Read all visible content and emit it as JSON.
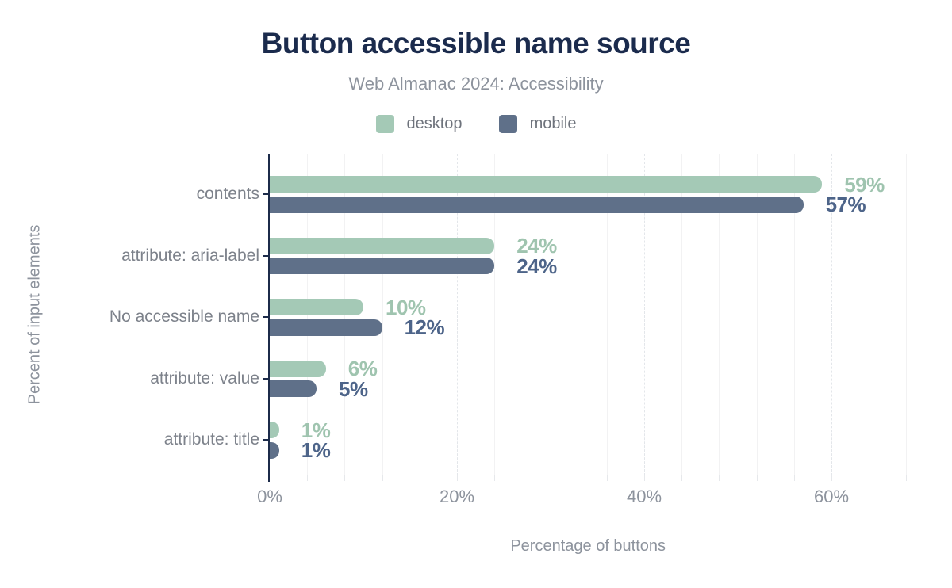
{
  "header": {
    "title": "Button accessible name source",
    "subtitle": "Web Almanac 2024: Accessibility"
  },
  "legend": {
    "items": [
      {
        "label": "desktop",
        "color": "#a4c9b6"
      },
      {
        "label": "mobile",
        "color": "#5f7089"
      }
    ]
  },
  "chart_data": {
    "type": "bar",
    "orientation": "horizontal",
    "title": "Button accessible name source",
    "subtitle": "Web Almanac 2024: Accessibility",
    "categories": [
      "contents",
      "attribute: aria-label",
      "No accessible name",
      "attribute: value",
      "attribute: title"
    ],
    "series": [
      {
        "name": "desktop",
        "color": "#a4c9b6",
        "label_color": "#9fc4af",
        "values": [
          59,
          24,
          10,
          6,
          1
        ]
      },
      {
        "name": "mobile",
        "color": "#5f7089",
        "label_color": "#4d6489",
        "values": [
          57,
          24,
          12,
          5,
          1
        ]
      }
    ],
    "value_suffix": "%",
    "xlabel": "Percentage of buttons",
    "ylabel": "Percent of input elements",
    "x_ticks": [
      {
        "label": "0%",
        "value": 0
      },
      {
        "label": "20%",
        "value": 20
      },
      {
        "label": "40%",
        "value": 40
      },
      {
        "label": "60%",
        "value": 60
      }
    ],
    "xlim": [
      0,
      68
    ],
    "minor_grid_step": 4,
    "major_grid_values": [
      20,
      40,
      60
    ],
    "grid": "vertical",
    "legend_position": "top"
  },
  "colors": {
    "title": "#1b2b4d",
    "muted_text": "#8d939d",
    "category_text": "#7d828b",
    "legend_text": "#6e737c",
    "axis_line": "#1c2b4a",
    "minor_grid": "#f2f2f3",
    "major_grid": "#e3e6ea",
    "bottom_tick": "#e6e8eb",
    "background": "#ffffff"
  }
}
